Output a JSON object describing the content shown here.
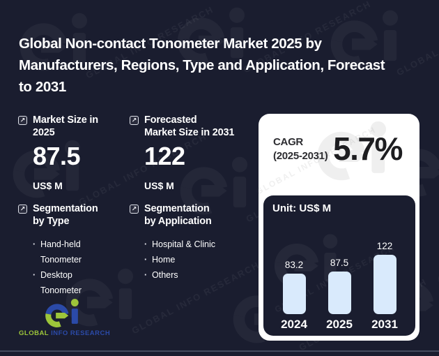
{
  "title_lines": [
    "Global Non-contact Tonometer Market 2025 by",
    "Manufacturers, Regions, Type and Application, Forecast",
    "to 2031"
  ],
  "stats": [
    {
      "label_lines": [
        "Market Size in",
        "2025"
      ],
      "value": "87.5",
      "unit": "US$ M"
    },
    {
      "label_lines": [
        "Forecasted",
        "Market Size in 2031"
      ],
      "value": "122",
      "unit": "US$ M"
    }
  ],
  "segmentations": [
    {
      "title_lines": [
        "Segmentation",
        "by Type"
      ],
      "items": [
        "Hand-held Tonometer",
        "Desktop Tonometer"
      ]
    },
    {
      "title_lines": [
        "Segmentation",
        "by Application"
      ],
      "items": [
        "Hospital & Clinic",
        "Home",
        "Others"
      ]
    }
  ],
  "cagr": {
    "label": "CAGR",
    "period": "(2025-2031)",
    "value": "5.7%"
  },
  "chart_data": {
    "type": "bar",
    "title": "Unit: US$ M",
    "categories": [
      "2024",
      "2025",
      "2031"
    ],
    "values": [
      83.2,
      87.5,
      122
    ],
    "value_labels": [
      "83.2",
      "87.5",
      "122"
    ],
    "ylim": [
      0,
      130
    ],
    "grid": false,
    "legend": "none",
    "bar_color": "#d9eafc",
    "background": "#1a1d2f"
  },
  "icons": {
    "stat_icon": "arrow-up-right-icon",
    "arrow_glyph": "↗"
  },
  "brand": {
    "word_global": "GLOBAL",
    "word_info_research": "INFO RESEARCH",
    "watermark": "GLOBAL INFO RESEARCH",
    "green": "#9dc53a",
    "blue": "#2b4aa8"
  },
  "colors": {
    "background": "#1a1d2f",
    "panel": "#ffffff",
    "bar": "#d9eafc",
    "text": "#ffffff",
    "dark_text": "#1d1d20",
    "divider": "#4e5265"
  }
}
